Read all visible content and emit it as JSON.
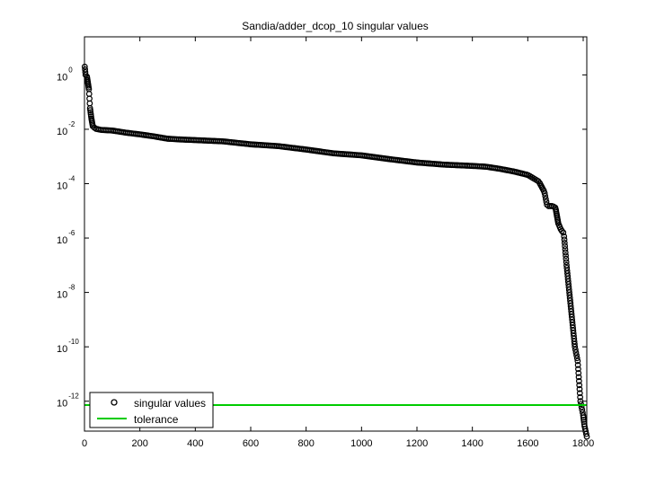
{
  "chart_data": {
    "type": "scatter",
    "title": "Sandia/adder_dcop_10 singular values",
    "xlabel": "",
    "ylabel": "",
    "xlim": [
      0,
      1813
    ],
    "ylim_log10": [
      -13.1,
      1.4
    ],
    "y_scale": "log",
    "grid": false,
    "legend_placement": "bottom-left",
    "x_ticks": [
      0,
      200,
      400,
      600,
      800,
      1000,
      1200,
      1400,
      1600,
      1800
    ],
    "y_ticks": [
      {
        "exp": 0,
        "base": "10",
        "sup": "0"
      },
      {
        "exp": -2,
        "base": "10",
        "sup": "-2"
      },
      {
        "exp": -4,
        "base": "10",
        "sup": "-4"
      },
      {
        "exp": -6,
        "base": "10",
        "sup": "-6"
      },
      {
        "exp": -8,
        "base": "10",
        "sup": "-8"
      },
      {
        "exp": -10,
        "base": "10",
        "sup": "-10"
      },
      {
        "exp": -12,
        "base": "10",
        "sup": "-12"
      }
    ],
    "series": [
      {
        "name": "singular values",
        "marker": "circle",
        "color": "#000000",
        "n_points": 1813,
        "profile_x": [
          1,
          4,
          8,
          12,
          16,
          20,
          25,
          30,
          40,
          60,
          100,
          150,
          200,
          250,
          300,
          350,
          400,
          500,
          600,
          700,
          800,
          900,
          1000,
          1100,
          1200,
          1300,
          1400,
          1450,
          1500,
          1550,
          1600,
          1640,
          1660,
          1670,
          1680,
          1690,
          1700,
          1710,
          1720,
          1730,
          1740,
          1750,
          1760,
          1770,
          1780,
          1790,
          1800,
          1805,
          1810,
          1813
        ],
        "profile_y": [
          2.0,
          1.0,
          1.0,
          0.55,
          0.3,
          0.06,
          0.025,
          0.013,
          0.0105,
          0.0095,
          0.009,
          0.0075,
          0.0065,
          0.0055,
          0.0045,
          0.0042,
          0.004,
          0.0036,
          0.0028,
          0.0024,
          0.0018,
          0.0013,
          0.0011,
          0.0008,
          0.0006,
          0.0005,
          0.00045,
          0.00042,
          0.00035,
          0.00028,
          0.00021,
          0.00012,
          5e-05,
          1.5e-05,
          1.5e-05,
          1.5e-05,
          1.3e-05,
          3.5e-06,
          2e-06,
          1.5e-06,
          1e-07,
          1e-08,
          1e-09,
          1e-10,
          3.01e-11,
          1e-12,
          3e-13,
          1.2e-13,
          7e-14,
          5e-14
        ]
      },
      {
        "name": "tolerance",
        "marker": "line",
        "color": "#00cc00",
        "y": 7.2e-13
      }
    ]
  }
}
